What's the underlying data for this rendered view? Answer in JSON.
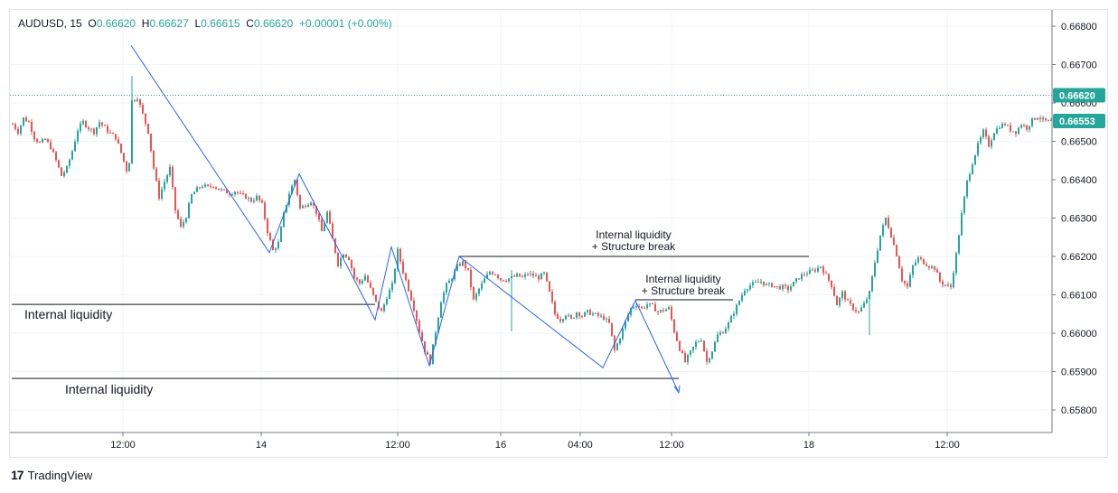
{
  "header": {
    "symbol": "AUDUSD",
    "interval": "15",
    "open_label": "O",
    "open": "0.66620",
    "high_label": "H",
    "high": "0.66627",
    "low_label": "L",
    "low": "0.66615",
    "close_label": "C",
    "close": "0.66620",
    "change": "+0.00001 (+0.00%)"
  },
  "brand": {
    "name": "TradingView",
    "logo": "17"
  },
  "colors": {
    "up": "#26a69a",
    "down": "#ef5350",
    "zigzag": "#2962ff",
    "level": "#131722",
    "last_price": "#26a69a"
  },
  "chart_data": {
    "type": "candlestick",
    "ylim": [
      0.6575,
      0.6685
    ],
    "yticks": [
      "0.66800",
      "0.66700",
      "0.66600",
      "0.66500",
      "0.66400",
      "0.66300",
      "0.66200",
      "0.66100",
      "0.66000",
      "0.65900",
      "0.65800"
    ],
    "xticks": [
      "12:00",
      "14",
      "12:00",
      "16",
      "04:00",
      "12:00",
      "18",
      "12:00"
    ],
    "last_price_label": "0.66620",
    "last_price": 0.6662,
    "ref_price_label": "0.66553",
    "ref_price": 0.66553,
    "grid": true,
    "candle_path": [
      [
        0,
        0.66545
      ],
      [
        6,
        0.66525
      ],
      [
        12,
        0.6656
      ],
      [
        18,
        0.6655
      ],
      [
        24,
        0.6651
      ],
      [
        30,
        0.66495
      ],
      [
        36,
        0.66505
      ],
      [
        42,
        0.66485
      ],
      [
        48,
        0.6645
      ],
      [
        54,
        0.6641
      ],
      [
        60,
        0.6643
      ],
      [
        66,
        0.66475
      ],
      [
        72,
        0.6653
      ],
      [
        78,
        0.6655
      ],
      [
        84,
        0.66535
      ],
      [
        90,
        0.66525
      ],
      [
        96,
        0.6655
      ],
      [
        102,
        0.66535
      ],
      [
        108,
        0.6652
      ],
      [
        114,
        0.6651
      ],
      [
        120,
        0.6647
      ],
      [
        126,
        0.66425
      ],
      [
        130,
        0.66455
      ],
      [
        132,
        0.66605
      ],
      [
        138,
        0.66615
      ],
      [
        144,
        0.6657
      ],
      [
        150,
        0.66525
      ],
      [
        156,
        0.6643
      ],
      [
        162,
        0.66355
      ],
      [
        168,
        0.66395
      ],
      [
        174,
        0.6643
      ],
      [
        180,
        0.6632
      ],
      [
        186,
        0.66275
      ],
      [
        192,
        0.66305
      ],
      [
        198,
        0.6636
      ],
      [
        204,
        0.66375
      ],
      [
        210,
        0.66385
      ],
      [
        216,
        0.6638
      ],
      [
        222,
        0.66385
      ],
      [
        228,
        0.66375
      ],
      [
        234,
        0.6637
      ],
      [
        240,
        0.66365
      ],
      [
        246,
        0.6637
      ],
      [
        252,
        0.6636
      ],
      [
        258,
        0.66355
      ],
      [
        264,
        0.66345
      ],
      [
        270,
        0.66355
      ],
      [
        276,
        0.66335
      ],
      [
        282,
        0.66265
      ],
      [
        288,
        0.66215
      ],
      [
        294,
        0.66235
      ],
      [
        300,
        0.6631
      ],
      [
        306,
        0.66365
      ],
      [
        312,
        0.664
      ],
      [
        318,
        0.66325
      ],
      [
        324,
        0.66335
      ],
      [
        330,
        0.66345
      ],
      [
        336,
        0.66315
      ],
      [
        342,
        0.66265
      ],
      [
        348,
        0.66315
      ],
      [
        354,
        0.66245
      ],
      [
        360,
        0.6618
      ],
      [
        366,
        0.6621
      ],
      [
        372,
        0.66195
      ],
      [
        378,
        0.66145
      ],
      [
        384,
        0.6613
      ],
      [
        390,
        0.6615
      ],
      [
        396,
        0.66115
      ],
      [
        402,
        0.6608
      ],
      [
        408,
        0.66055
      ],
      [
        414,
        0.66095
      ],
      [
        420,
        0.66125
      ],
      [
        426,
        0.66215
      ],
      [
        432,
        0.6616
      ],
      [
        438,
        0.66115
      ],
      [
        444,
        0.66065
      ],
      [
        450,
        0.66005
      ],
      [
        456,
        0.65955
      ],
      [
        462,
        0.65925
      ],
      [
        468,
        0.66005
      ],
      [
        474,
        0.66085
      ],
      [
        480,
        0.66125
      ],
      [
        486,
        0.66145
      ],
      [
        492,
        0.66175
      ],
      [
        498,
        0.66185
      ],
      [
        504,
        0.6616
      ],
      [
        510,
        0.66085
      ],
      [
        516,
        0.66115
      ],
      [
        522,
        0.6614
      ],
      [
        528,
        0.6616
      ],
      [
        534,
        0.66155
      ],
      [
        540,
        0.6614
      ],
      [
        546,
        0.6614
      ],
      [
        552,
        0.66145
      ],
      [
        558,
        0.6615
      ],
      [
        564,
        0.66145
      ],
      [
        570,
        0.66155
      ],
      [
        576,
        0.6615
      ],
      [
        582,
        0.66145
      ],
      [
        588,
        0.66155
      ],
      [
        594,
        0.66105
      ],
      [
        600,
        0.6605
      ],
      [
        606,
        0.66035
      ],
      [
        612,
        0.6605
      ],
      [
        618,
        0.66035
      ],
      [
        624,
        0.66055
      ],
      [
        630,
        0.66045
      ],
      [
        636,
        0.66055
      ],
      [
        642,
        0.6605
      ],
      [
        648,
        0.66045
      ],
      [
        654,
        0.6604
      ],
      [
        660,
        0.66025
      ],
      [
        666,
        0.65955
      ],
      [
        672,
        0.6599
      ],
      [
        678,
        0.6603
      ],
      [
        684,
        0.66065
      ],
      [
        690,
        0.66075
      ],
      [
        696,
        0.66065
      ],
      [
        702,
        0.66075
      ],
      [
        708,
        0.6607
      ],
      [
        714,
        0.66055
      ],
      [
        720,
        0.6606
      ],
      [
        726,
        0.66065
      ],
      [
        732,
        0.66005
      ],
      [
        738,
        0.6596
      ],
      [
        744,
        0.65925
      ],
      [
        750,
        0.6595
      ],
      [
        756,
        0.65975
      ],
      [
        762,
        0.65985
      ],
      [
        768,
        0.65925
      ],
      [
        774,
        0.65955
      ],
      [
        780,
        0.65995
      ],
      [
        786,
        0.66005
      ],
      [
        792,
        0.66025
      ],
      [
        798,
        0.66055
      ],
      [
        804,
        0.66085
      ],
      [
        810,
        0.66115
      ],
      [
        816,
        0.66125
      ],
      [
        822,
        0.6613
      ],
      [
        828,
        0.66135
      ],
      [
        834,
        0.66125
      ],
      [
        840,
        0.66125
      ],
      [
        846,
        0.6612
      ],
      [
        852,
        0.6612
      ],
      [
        858,
        0.66115
      ],
      [
        864,
        0.6613
      ],
      [
        870,
        0.66145
      ],
      [
        876,
        0.66155
      ],
      [
        882,
        0.6616
      ],
      [
        888,
        0.66165
      ],
      [
        894,
        0.66175
      ],
      [
        900,
        0.6615
      ],
      [
        906,
        0.66125
      ],
      [
        912,
        0.66075
      ],
      [
        918,
        0.66105
      ],
      [
        924,
        0.6608
      ],
      [
        930,
        0.66065
      ],
      [
        936,
        0.66055
      ],
      [
        942,
        0.66075
      ],
      [
        948,
        0.66105
      ],
      [
        954,
        0.66185
      ],
      [
        960,
        0.66255
      ],
      [
        966,
        0.663
      ],
      [
        972,
        0.66255
      ],
      [
        978,
        0.66205
      ],
      [
        984,
        0.6614
      ],
      [
        990,
        0.6612
      ],
      [
        996,
        0.66175
      ],
      [
        1002,
        0.66195
      ],
      [
        1008,
        0.66185
      ],
      [
        1014,
        0.66175
      ],
      [
        1020,
        0.6617
      ],
      [
        1026,
        0.66135
      ],
      [
        1032,
        0.66125
      ],
      [
        1038,
        0.6612
      ],
      [
        1044,
        0.66205
      ],
      [
        1050,
        0.6631
      ],
      [
        1056,
        0.66395
      ],
      [
        1062,
        0.66445
      ],
      [
        1068,
        0.6649
      ],
      [
        1074,
        0.66525
      ],
      [
        1080,
        0.6649
      ],
      [
        1086,
        0.66525
      ],
      [
        1092,
        0.6654
      ],
      [
        1098,
        0.66545
      ],
      [
        1104,
        0.6653
      ],
      [
        1110,
        0.66525
      ],
      [
        1116,
        0.66545
      ],
      [
        1122,
        0.66535
      ],
      [
        1128,
        0.66555
      ],
      [
        1134,
        0.66565
      ],
      [
        1140,
        0.66555
      ],
      [
        1146,
        0.6655
      ],
      [
        1150,
        0.66553
      ]
    ],
    "spikes": [
      {
        "x": 132,
        "high": 0.6667,
        "low": 0.6648
      },
      {
        "x": 552,
        "high": 0.66165,
        "low": 0.66005
      },
      {
        "x": 948,
        "high": 0.6611,
        "low": 0.65995
      }
    ],
    "zigzag": [
      [
        132,
        0.6675
      ],
      [
        285,
        0.6621
      ],
      [
        318,
        0.66415
      ],
      [
        402,
        0.66035
      ],
      [
        420,
        0.66225
      ],
      [
        462,
        0.65915
      ],
      [
        495,
        0.662
      ],
      [
        654,
        0.6591
      ],
      [
        690,
        0.66085
      ],
      [
        738,
        0.65845
      ]
    ],
    "levels": [
      {
        "x0": 0,
        "x1": 402,
        "price": 0.66075,
        "label": "Internal liquidity"
      },
      {
        "x0": 0,
        "x1": 738,
        "price": 0.65882,
        "label": "Internal liquidity"
      },
      {
        "x0": 495,
        "x1": 882,
        "price": 0.662,
        "label_line1": "Internal liquidity",
        "label_line2": "+ Structure break"
      },
      {
        "x0": 690,
        "x1": 798,
        "price": 0.66087,
        "label_line1": "Internal liquidity",
        "label_line2": "+ Structure break"
      }
    ]
  }
}
